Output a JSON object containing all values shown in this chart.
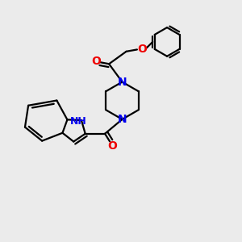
{
  "bg_color": "#ebebeb",
  "bond_color": "#000000",
  "N_color": "#0000ee",
  "O_color": "#ee0000",
  "line_width": 1.6,
  "font_size": 10,
  "nh_font_size": 9,
  "xlim": [
    0,
    10
  ],
  "ylim": [
    0,
    10
  ]
}
